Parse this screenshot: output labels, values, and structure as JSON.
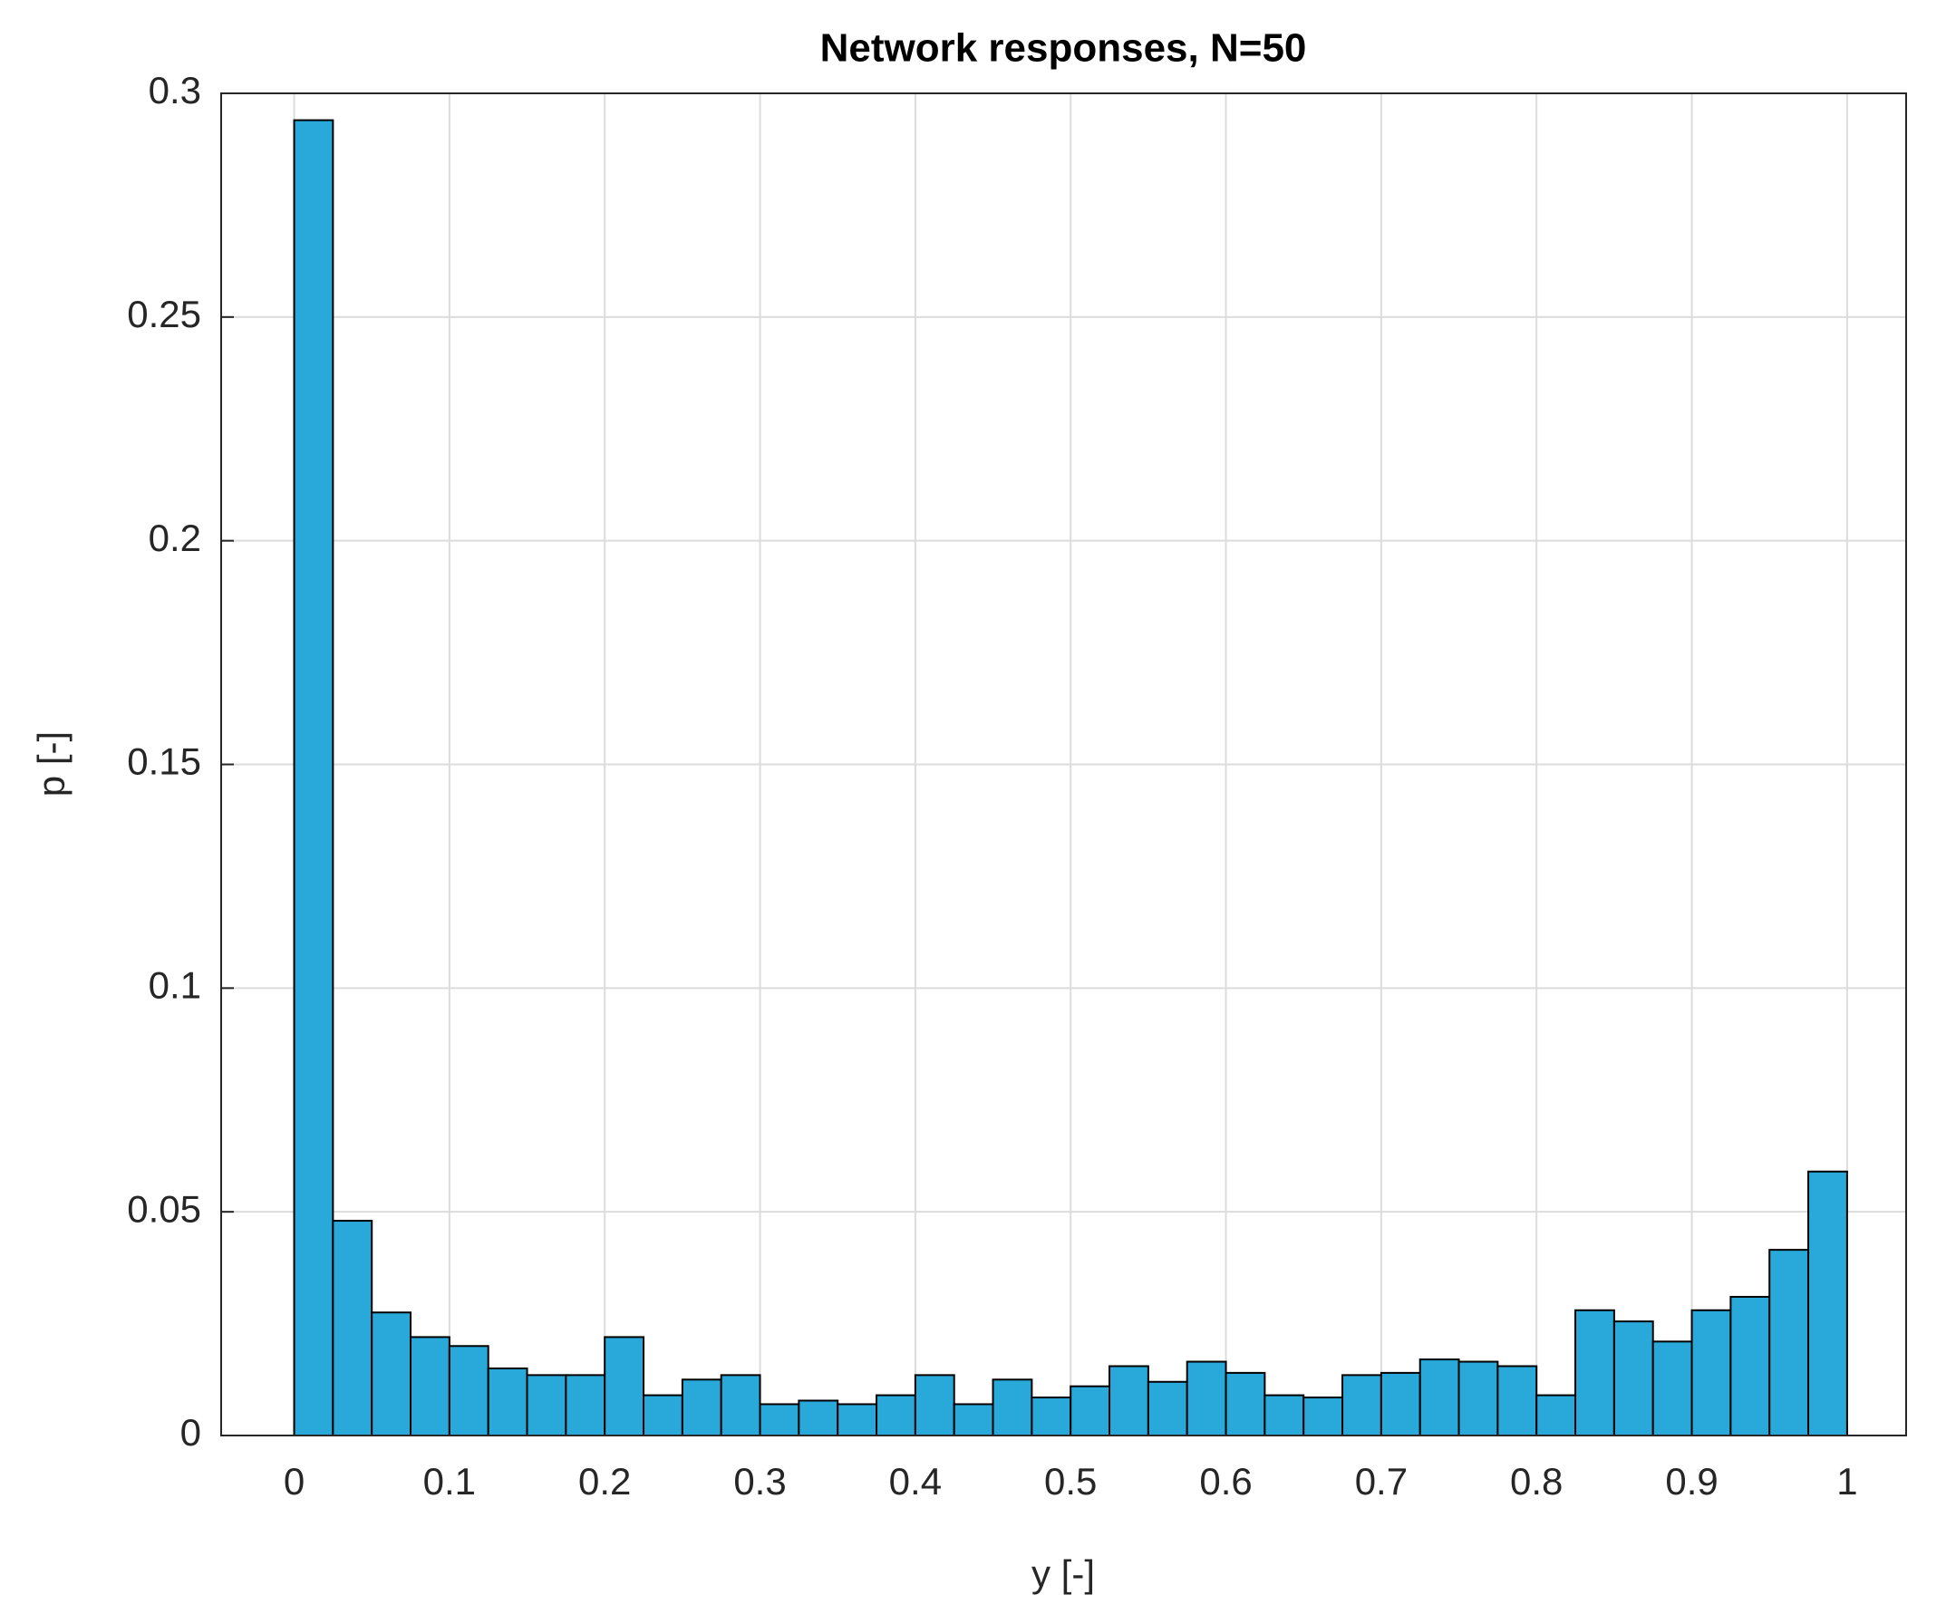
{
  "chart_data": {
    "type": "histogram",
    "title": "Network responses, N=50",
    "xlabel": "y [-]",
    "ylabel": "p [-]",
    "bins": [
      0,
      0.025,
      0.05,
      0.075,
      0.1,
      0.125,
      0.15,
      0.175,
      0.2,
      0.225,
      0.25,
      0.275,
      0.3,
      0.325,
      0.35,
      0.375,
      0.4,
      0.425,
      0.45,
      0.475,
      0.5,
      0.525,
      0.55,
      0.575,
      0.6,
      0.625,
      0.65,
      0.675,
      0.7,
      0.725,
      0.75,
      0.775,
      0.8,
      0.825,
      0.85,
      0.875,
      0.9,
      0.925,
      0.95,
      0.975,
      1
    ],
    "values": [
      0.294,
      0.048,
      0.0275,
      0.022,
      0.02,
      0.015,
      0.0135,
      0.0135,
      0.022,
      0.009,
      0.0125,
      0.0135,
      0.007,
      0.0078,
      0.007,
      0.009,
      0.0135,
      0.007,
      0.0125,
      0.0085,
      0.011,
      0.0155,
      0.012,
      0.0165,
      0.014,
      0.009,
      0.0085,
      0.0135,
      0.014,
      0.017,
      0.0165,
      0.0155,
      0.009,
      0.028,
      0.0255,
      0.021,
      0.028,
      0.031,
      0.0415,
      0.059
    ],
    "color": "#29a9d9",
    "xlim": [
      -0.047,
      1.038
    ],
    "xticks": [
      0,
      0.1,
      0.2,
      0.3,
      0.4,
      0.5,
      0.6,
      0.7,
      0.8,
      0.9,
      1
    ],
    "ylim": [
      0,
      0.3
    ],
    "yticks": [
      0,
      0.05,
      0.1,
      0.15,
      0.2,
      0.25,
      0.3
    ],
    "grid": true
  }
}
